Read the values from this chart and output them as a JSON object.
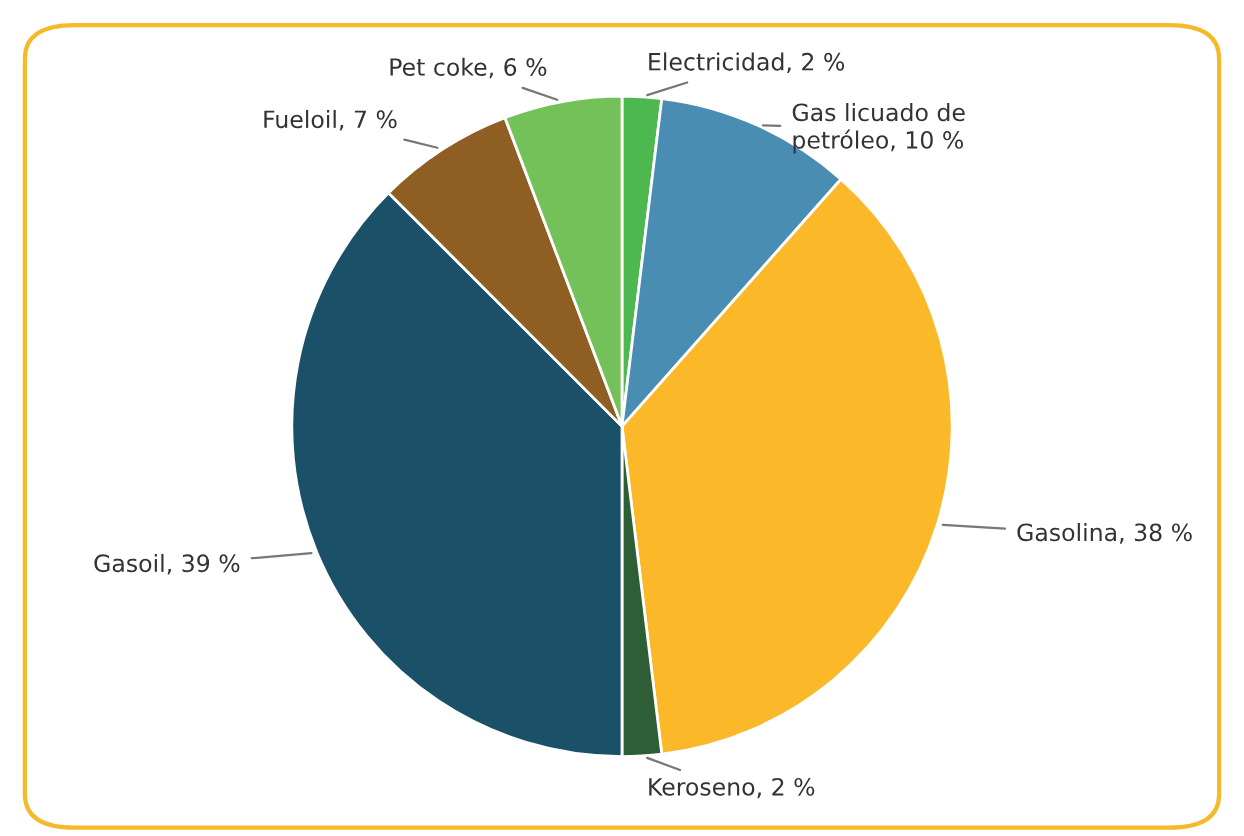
{
  "chart_data": {
    "type": "pie",
    "categories": [
      "Electricidad",
      "Gas licuado de\npetróleo",
      "Gasolina",
      "Keroseno",
      "Gasoil",
      "Fueloil",
      "Pet coke"
    ],
    "values": [
      2,
      10,
      38,
      2,
      39,
      7,
      6
    ],
    "colors": [
      "#4cb84f",
      "#4a8db3",
      "#fbb829",
      "#2d5e36",
      "#1b5069",
      "#8f5e22",
      "#74c15a"
    ],
    "value_labels": [
      "2 %",
      "10 %",
      "38 %",
      "2 %",
      "39 %",
      "7 %",
      "6 %"
    ]
  }
}
